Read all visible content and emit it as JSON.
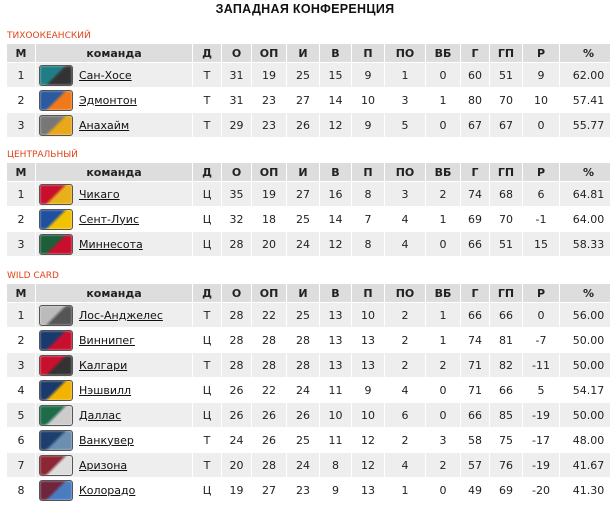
{
  "title": "ЗАПАДНАЯ КОНФЕРЕНЦИЯ",
  "columns": [
    "М",
    "команда",
    "Д",
    "О",
    "ОП",
    "И",
    "В",
    "П",
    "ПО",
    "ВБ",
    "Г",
    "ГП",
    "Р",
    "%"
  ],
  "sections": [
    {
      "label": "ТИХООКЕАНСКИЙ",
      "rows": [
        [
          "1",
          "Сан-Хосе",
          "Т",
          "31",
          "19",
          "25",
          "15",
          "9",
          "1",
          "0",
          "60",
          "51",
          "9",
          "62.00"
        ],
        [
          "2",
          "Эдмонтон",
          "Т",
          "31",
          "23",
          "27",
          "14",
          "10",
          "3",
          "1",
          "80",
          "70",
          "10",
          "57.41"
        ],
        [
          "3",
          "Анахайм",
          "Т",
          "29",
          "23",
          "26",
          "12",
          "9",
          "5",
          "0",
          "67",
          "67",
          "0",
          "55.77"
        ]
      ],
      "logo_colors": [
        [
          "#1f7d86",
          "#333"
        ],
        [
          "#2b5aa0",
          "#f07a1a"
        ],
        [
          "#777",
          "#e8a81a"
        ]
      ]
    },
    {
      "label": "ЦЕНТРАЛЬНЫЙ",
      "rows": [
        [
          "1",
          "Чикаго",
          "Ц",
          "35",
          "19",
          "27",
          "16",
          "8",
          "3",
          "2",
          "74",
          "68",
          "6",
          "64.81"
        ],
        [
          "2",
          "Сент-Луис",
          "Ц",
          "32",
          "18",
          "25",
          "14",
          "7",
          "4",
          "1",
          "69",
          "70",
          "-1",
          "64.00"
        ],
        [
          "3",
          "Миннесота",
          "Ц",
          "28",
          "20",
          "24",
          "12",
          "8",
          "4",
          "0",
          "66",
          "51",
          "15",
          "58.33"
        ]
      ],
      "logo_colors": [
        [
          "#c8102e",
          "#e8b01a"
        ],
        [
          "#1f4f9e",
          "#f2c200"
        ],
        [
          "#1c5f3a",
          "#c8102e"
        ]
      ]
    },
    {
      "label": "WILD CARD",
      "rows": [
        [
          "1",
          "Лос-Анджелес",
          "Т",
          "28",
          "22",
          "25",
          "13",
          "10",
          "2",
          "1",
          "66",
          "66",
          "0",
          "56.00"
        ],
        [
          "2",
          "Виннипег",
          "Ц",
          "28",
          "28",
          "28",
          "13",
          "13",
          "2",
          "1",
          "74",
          "81",
          "-7",
          "50.00"
        ],
        [
          "3",
          "Калгари",
          "Т",
          "28",
          "28",
          "28",
          "13",
          "13",
          "2",
          "2",
          "71",
          "82",
          "-11",
          "50.00"
        ],
        [
          "4",
          "Нэшвилл",
          "Ц",
          "26",
          "22",
          "24",
          "11",
          "9",
          "4",
          "0",
          "71",
          "66",
          "5",
          "54.17"
        ],
        [
          "5",
          "Даллас",
          "Ц",
          "26",
          "26",
          "26",
          "10",
          "10",
          "6",
          "0",
          "66",
          "85",
          "-19",
          "50.00"
        ],
        [
          "6",
          "Ванкувер",
          "Т",
          "24",
          "26",
          "25",
          "11",
          "12",
          "2",
          "3",
          "58",
          "75",
          "-17",
          "48.00"
        ],
        [
          "7",
          "Аризона",
          "Т",
          "20",
          "28",
          "24",
          "8",
          "12",
          "4",
          "2",
          "57",
          "76",
          "-19",
          "41.67"
        ],
        [
          "8",
          "Колорадо",
          "Ц",
          "19",
          "27",
          "23",
          "9",
          "13",
          "1",
          "0",
          "49",
          "69",
          "-20",
          "41.30"
        ]
      ],
      "logo_colors": [
        [
          "#bbb",
          "#555"
        ],
        [
          "#1a3a6e",
          "#c8102e"
        ],
        [
          "#c8102e",
          "#333"
        ],
        [
          "#1a3a6e",
          "#f2b400"
        ],
        [
          "#1e6b4a",
          "#ccc"
        ],
        [
          "#1c3f6e",
          "#6a8fb0"
        ],
        [
          "#8c2633",
          "#ddd"
        ],
        [
          "#6f263d",
          "#4a7cc0"
        ]
      ]
    }
  ]
}
